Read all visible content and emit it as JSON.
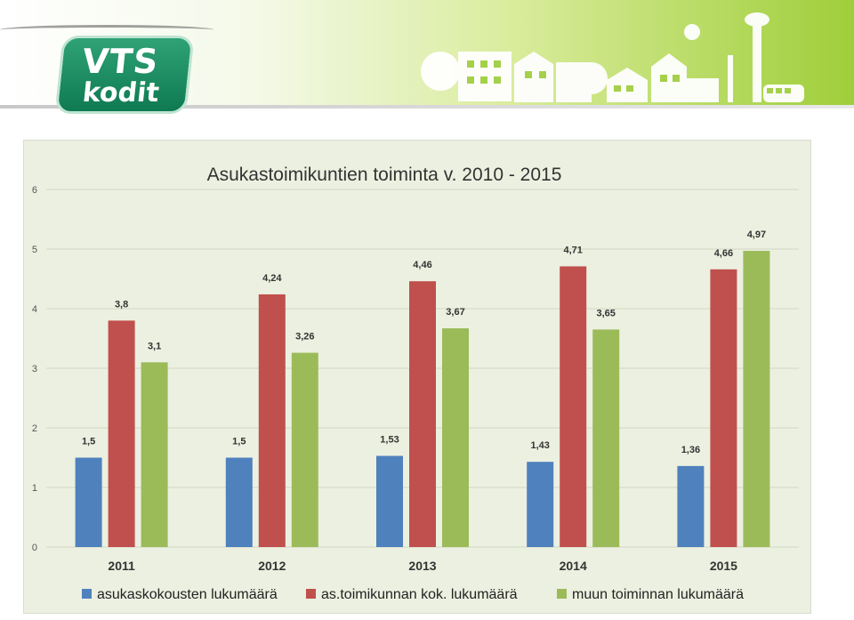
{
  "brand": {
    "line1": "VTS",
    "line2": "kodit"
  },
  "colors": {
    "blue": "#4f81bd",
    "red": "#c0504d",
    "green": "#9bbb59",
    "plot_bg": "#ecf0e0"
  },
  "chart_data": {
    "type": "bar",
    "title": "Asukastoimikuntien toiminta v. 2010 - 2015",
    "categories": [
      "2011",
      "2012",
      "2013",
      "2014",
      "2015"
    ],
    "series": [
      {
        "name": "asukaskokousten lukumäärä",
        "values": [
          1.5,
          1.5,
          1.53,
          1.43,
          1.36
        ],
        "labels": [
          "1,5",
          "1,5",
          "1,53",
          "1,43",
          "1,36"
        ],
        "color": "#4f81bd"
      },
      {
        "name": "as.toimikunnan kok. lukumäärä",
        "values": [
          3.8,
          4.24,
          4.46,
          4.71,
          4.66
        ],
        "labels": [
          "3,8",
          "4,24",
          "4,46",
          "4,71",
          "4,66"
        ],
        "color": "#c0504d"
      },
      {
        "name": "muun toiminnan lukumäärä",
        "values": [
          3.1,
          3.26,
          3.67,
          3.65,
          4.97
        ],
        "labels": [
          "3,1",
          "3,26",
          "3,67",
          "3,65",
          "4,97"
        ],
        "color": "#9bbb59"
      }
    ],
    "ylim": [
      0,
      6
    ],
    "yticks": [
      "0",
      "1",
      "2",
      "3",
      "4",
      "5",
      "6"
    ],
    "grid": true,
    "legend_position": "bottom"
  }
}
